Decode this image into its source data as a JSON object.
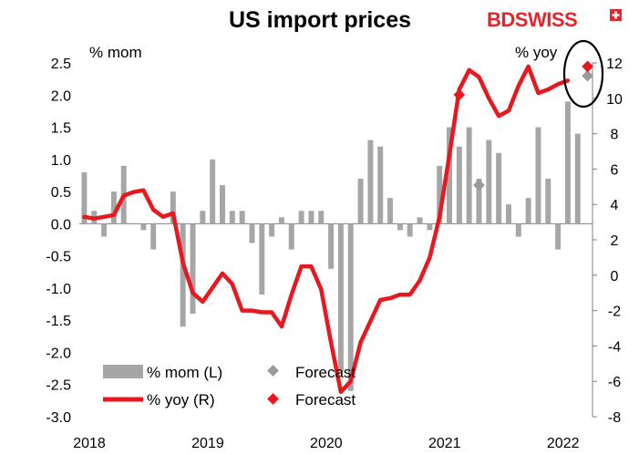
{
  "logo": {
    "text_bold": "BD",
    "text_rest": "SWISS",
    "brand_color": "#e3262b"
  },
  "colors": {
    "bar": "#a6a6a6",
    "line": "#e8181f",
    "forecast_mom": "#9a9a9a",
    "forecast_yoy": "#e8181f",
    "axis": "#808080"
  },
  "chart_data": {
    "type": "bar+line",
    "title": "US import prices",
    "left_unit": "% mom",
    "right_unit": "% yoy",
    "left_axis": {
      "min": -3.0,
      "max": 2.5,
      "ticks": [
        "2.5",
        "2.0",
        "1.5",
        "1.0",
        "0.5",
        "0.0",
        "-0.5",
        "-1.0",
        "-1.5",
        "-2.0",
        "-2.5",
        "-3.0"
      ]
    },
    "right_axis": {
      "min": -8,
      "max": 12,
      "ticks": [
        "12",
        "10",
        "8",
        "6",
        "4",
        "2",
        "0",
        "-2",
        "-4",
        "-6",
        "-8"
      ]
    },
    "x_labels": [
      "2018",
      "2019",
      "2020",
      "2021",
      "2022"
    ],
    "months": 52,
    "series": [
      {
        "name": "% mom (L)",
        "type": "bar",
        "values": [
          0.8,
          0.2,
          -0.2,
          0.5,
          0.9,
          0.0,
          -0.1,
          -0.4,
          0.0,
          0.5,
          -1.6,
          -1.4,
          0.2,
          1.0,
          0.6,
          0.2,
          0.2,
          -0.3,
          -1.1,
          -0.2,
          0.1,
          -0.4,
          0.2,
          0.2,
          0.2,
          -0.7,
          -2.3,
          -2.6,
          0.7,
          1.3,
          1.2,
          0.4,
          -0.1,
          -0.2,
          0.1,
          -0.1,
          0.9,
          1.5,
          1.2,
          1.5,
          0.7,
          1.3,
          1.1,
          0.3,
          -0.2,
          0.4,
          1.5,
          0.7,
          -0.4,
          1.9,
          1.4,
          0.0
        ]
      },
      {
        "name": "% yoy (R)",
        "type": "line",
        "values": [
          3.3,
          3.2,
          3.3,
          3.4,
          4.5,
          4.7,
          4.8,
          3.7,
          3.3,
          3.5,
          0.7,
          -1.0,
          -1.5,
          -0.7,
          0.1,
          -0.5,
          -2.0,
          -2.0,
          -2.1,
          -2.1,
          -2.9,
          -1.1,
          0.5,
          0.5,
          -0.8,
          -3.8,
          -6.6,
          -6.0,
          -3.8,
          -2.6,
          -1.4,
          -1.3,
          -1.1,
          -1.1,
          -0.3,
          1.0,
          3.3,
          6.8,
          10.5,
          11.6,
          11.2,
          10.0,
          9.0,
          9.3,
          10.7,
          11.8,
          10.3,
          10.5,
          10.8,
          11.0,
          null,
          null
        ]
      }
    ],
    "forecast": [
      {
        "name": "Forecast",
        "series": "% mom (L)",
        "points": [
          {
            "month": 40,
            "value": 0.6
          },
          {
            "month": 51,
            "value": 2.3
          }
        ]
      },
      {
        "name": "Forecast",
        "series": "% yoy (R)",
        "points": [
          {
            "month": 38,
            "value": 10.2
          },
          {
            "month": 51,
            "value": 11.8
          }
        ]
      }
    ],
    "legend": [
      "% mom (L)",
      "Forecast",
      "% yoy (R)",
      "Forecast"
    ],
    "annotation": "ellipse around latest forecast points"
  }
}
